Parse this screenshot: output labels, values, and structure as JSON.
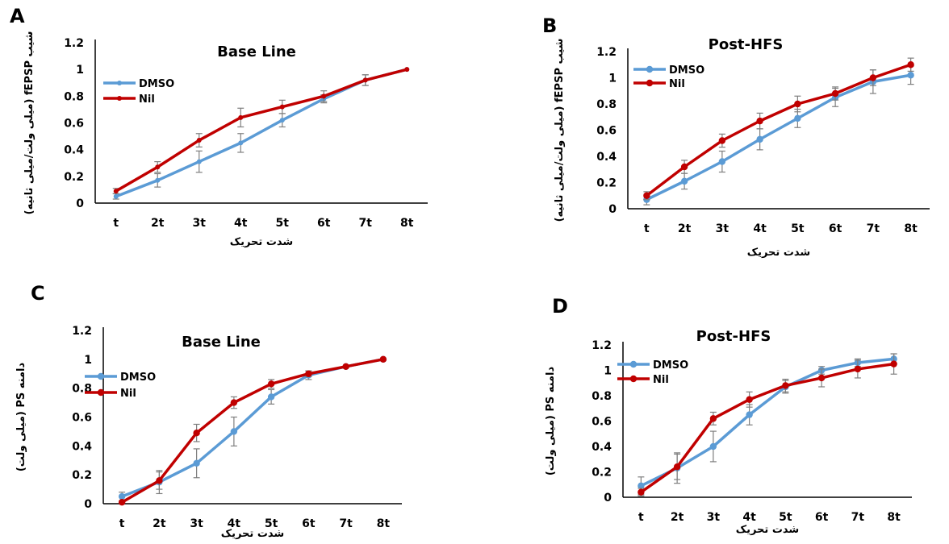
{
  "colors": {
    "DMSO": "#5b9bd5",
    "Nil": "#c00000",
    "error_bar": "#7f7f7f",
    "axis": "#000000"
  },
  "chart_data": [
    {
      "panel": "A",
      "type": "line",
      "title": "Base Line",
      "xlabel": "شدت تحریک",
      "ylabel": "شیب fEPSP (میلی ولت/میلی ثانیه)",
      "categories": [
        "t",
        "2t",
        "3t",
        "4t",
        "5t",
        "6t",
        "7t",
        "8t"
      ],
      "ylim": [
        0,
        1.2
      ],
      "yticks": [
        "0",
        "0.2",
        "0.4",
        "0.6",
        "0.8",
        "1",
        "1.2"
      ],
      "legend_position": "top-left",
      "series": [
        {
          "name": "DMSO",
          "values": [
            0.05,
            0.17,
            0.31,
            0.45,
            0.62,
            0.78,
            0.92,
            1.0
          ],
          "errors": [
            0.02,
            0.05,
            0.08,
            0.07,
            0.05,
            0.03,
            0.04,
            0.0
          ]
        },
        {
          "name": "Nil",
          "values": [
            0.09,
            0.27,
            0.47,
            0.64,
            0.72,
            0.8,
            0.92,
            1.0
          ],
          "errors": [
            0.02,
            0.04,
            0.05,
            0.07,
            0.05,
            0.04,
            0.04,
            0.0
          ]
        }
      ]
    },
    {
      "panel": "B",
      "type": "line",
      "title": "Post-HFS",
      "xlabel": "شدت تحریک",
      "ylabel": "شیب fEPSP (میلی ولت/میلی ثانیه)",
      "categories": [
        "t",
        "2t",
        "3t",
        "4t",
        "5t",
        "6t",
        "7t",
        "8t"
      ],
      "ylim": [
        0,
        1.2
      ],
      "yticks": [
        "0",
        "0.2",
        "0.4",
        "0.6",
        "0.8",
        "1",
        "1.2"
      ],
      "legend_position": "top-left",
      "series": [
        {
          "name": "DMSO",
          "values": [
            0.07,
            0.21,
            0.36,
            0.53,
            0.69,
            0.85,
            0.97,
            1.02
          ],
          "errors": [
            0.04,
            0.06,
            0.08,
            0.08,
            0.07,
            0.07,
            0.09,
            0.07
          ]
        },
        {
          "name": "Nil",
          "values": [
            0.1,
            0.32,
            0.52,
            0.67,
            0.8,
            0.88,
            1.0,
            1.1
          ],
          "errors": [
            0.03,
            0.05,
            0.05,
            0.06,
            0.06,
            0.05,
            0.06,
            0.05
          ]
        }
      ]
    },
    {
      "panel": "C",
      "type": "line",
      "title": "Base Line",
      "xlabel": "شدت تحریک",
      "ylabel": "دامنه PS (میلی ولت)",
      "categories": [
        "t",
        "2t",
        "3t",
        "4t",
        "5t",
        "6t",
        "7t",
        "8t"
      ],
      "ylim": [
        0,
        1.2
      ],
      "yticks": [
        "0",
        "0.2",
        "0.4",
        "0.6",
        "0.8",
        "1",
        "1.2"
      ],
      "legend_position": "top-left",
      "series": [
        {
          "name": "DMSO",
          "values": [
            0.05,
            0.15,
            0.28,
            0.5,
            0.74,
            0.89,
            0.95,
            1.0
          ],
          "errors": [
            0.03,
            0.08,
            0.1,
            0.1,
            0.05,
            0.03,
            0.0,
            0.0
          ]
        },
        {
          "name": "Nil",
          "values": [
            0.01,
            0.16,
            0.49,
            0.7,
            0.83,
            0.9,
            0.95,
            1.0
          ],
          "errors": [
            0.0,
            0.06,
            0.06,
            0.04,
            0.03,
            0.02,
            0.0,
            0.0
          ]
        }
      ]
    },
    {
      "panel": "D",
      "type": "line",
      "title": "Post-HFS",
      "xlabel": "شدت تحریک",
      "ylabel": "دامنه PS (میلی ولت)",
      "categories": [
        "t",
        "2t",
        "3t",
        "4t",
        "5t",
        "6t",
        "7t",
        "8t"
      ],
      "ylim": [
        0,
        1.2
      ],
      "yticks": [
        "0",
        "0.2",
        "0.4",
        "0.6",
        "0.8",
        "1",
        "1.2"
      ],
      "legend_position": "top-left",
      "series": [
        {
          "name": "DMSO",
          "values": [
            0.09,
            0.23,
            0.4,
            0.65,
            0.87,
            1.0,
            1.06,
            1.09
          ],
          "errors": [
            0.07,
            0.12,
            0.12,
            0.08,
            0.05,
            0.03,
            0.03,
            0.04
          ]
        },
        {
          "name": "Nil",
          "values": [
            0.04,
            0.24,
            0.62,
            0.77,
            0.88,
            0.94,
            1.01,
            1.05
          ],
          "errors": [
            0.03,
            0.1,
            0.05,
            0.06,
            0.05,
            0.07,
            0.07,
            0.08
          ]
        }
      ]
    }
  ]
}
